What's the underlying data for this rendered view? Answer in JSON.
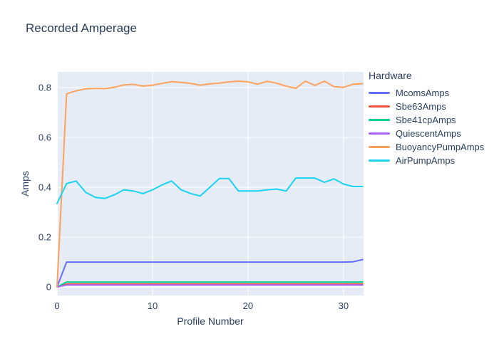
{
  "title": "Recorded Amperage",
  "colors": {
    "text": "#2a3f5f",
    "paper_bg": "#ffffff",
    "plot_bg": "#e5ecf6",
    "grid": "#ffffff"
  },
  "chart_data": {
    "type": "line",
    "title": "Recorded Amperage",
    "xlabel": "Profile Number",
    "ylabel": "Amps",
    "legend_title": "Hardware",
    "legend_position": "right",
    "grid": true,
    "xlim": [
      0,
      32.1
    ],
    "ylim": [
      -0.034,
      0.863
    ],
    "x_ticks": [
      0,
      10,
      20,
      30
    ],
    "y_ticks": [
      0,
      0.2,
      0.4,
      0.6,
      0.8
    ],
    "x": [
      0,
      1,
      2,
      3,
      4,
      5,
      6,
      7,
      8,
      9,
      10,
      11,
      12,
      13,
      14,
      15,
      16,
      17,
      18,
      19,
      20,
      21,
      22,
      23,
      24,
      25,
      26,
      27,
      28,
      29,
      30,
      31,
      32
    ],
    "series": [
      {
        "name": "McomsAmps",
        "color": "#636efa",
        "values": [
          0,
          0.1,
          0.1,
          0.1,
          0.1,
          0.1,
          0.1,
          0.1,
          0.1,
          0.1,
          0.1,
          0.1,
          0.1,
          0.1,
          0.1,
          0.1,
          0.1,
          0.1,
          0.1,
          0.1,
          0.1,
          0.1,
          0.1,
          0.1,
          0.1,
          0.1,
          0.1,
          0.1,
          0.1,
          0.1,
          0.1,
          0.101,
          0.11
        ]
      },
      {
        "name": "Sbe63Amps",
        "color": "#ef553b",
        "values": [
          0,
          0.012,
          0.012,
          0.012,
          0.012,
          0.012,
          0.012,
          0.012,
          0.012,
          0.012,
          0.012,
          0.012,
          0.012,
          0.012,
          0.012,
          0.012,
          0.012,
          0.012,
          0.012,
          0.012,
          0.012,
          0.012,
          0.012,
          0.012,
          0.012,
          0.012,
          0.012,
          0.012,
          0.012,
          0.012,
          0.012,
          0.012,
          0.012
        ]
      },
      {
        "name": "Sbe41cpAmps",
        "color": "#00cc96",
        "values": [
          0,
          0.02,
          0.02,
          0.02,
          0.02,
          0.02,
          0.02,
          0.02,
          0.02,
          0.02,
          0.02,
          0.02,
          0.02,
          0.02,
          0.02,
          0.02,
          0.02,
          0.02,
          0.02,
          0.02,
          0.02,
          0.02,
          0.02,
          0.02,
          0.02,
          0.02,
          0.02,
          0.02,
          0.02,
          0.02,
          0.02,
          0.02,
          0.02
        ]
      },
      {
        "name": "QuiescentAmps",
        "color": "#ab63fa",
        "values": [
          0,
          0.008,
          0.008,
          0.008,
          0.008,
          0.008,
          0.008,
          0.008,
          0.008,
          0.008,
          0.008,
          0.008,
          0.008,
          0.008,
          0.008,
          0.008,
          0.008,
          0.008,
          0.008,
          0.008,
          0.008,
          0.008,
          0.008,
          0.008,
          0.008,
          0.008,
          0.008,
          0.008,
          0.008,
          0.008,
          0.008,
          0.008,
          0.008
        ]
      },
      {
        "name": "BuoyancyPumpAmps",
        "color": "#ffa15a",
        "values": [
          0,
          0.775,
          0.787,
          0.795,
          0.797,
          0.796,
          0.801,
          0.811,
          0.813,
          0.806,
          0.81,
          0.817,
          0.824,
          0.821,
          0.817,
          0.81,
          0.815,
          0.818,
          0.823,
          0.826,
          0.823,
          0.814,
          0.825,
          0.818,
          0.806,
          0.797,
          0.826,
          0.809,
          0.826,
          0.804,
          0.801,
          0.814,
          0.816
        ]
      },
      {
        "name": "AirPumpAmps",
        "color": "#19d3f3",
        "values": [
          0.335,
          0.415,
          0.425,
          0.38,
          0.36,
          0.355,
          0.37,
          0.39,
          0.385,
          0.375,
          0.39,
          0.41,
          0.425,
          0.39,
          0.375,
          0.365,
          0.4,
          0.435,
          0.435,
          0.385,
          0.385,
          0.385,
          0.39,
          0.393,
          0.385,
          0.437,
          0.437,
          0.437,
          0.42,
          0.434,
          0.413,
          0.403,
          0.403
        ]
      }
    ]
  }
}
